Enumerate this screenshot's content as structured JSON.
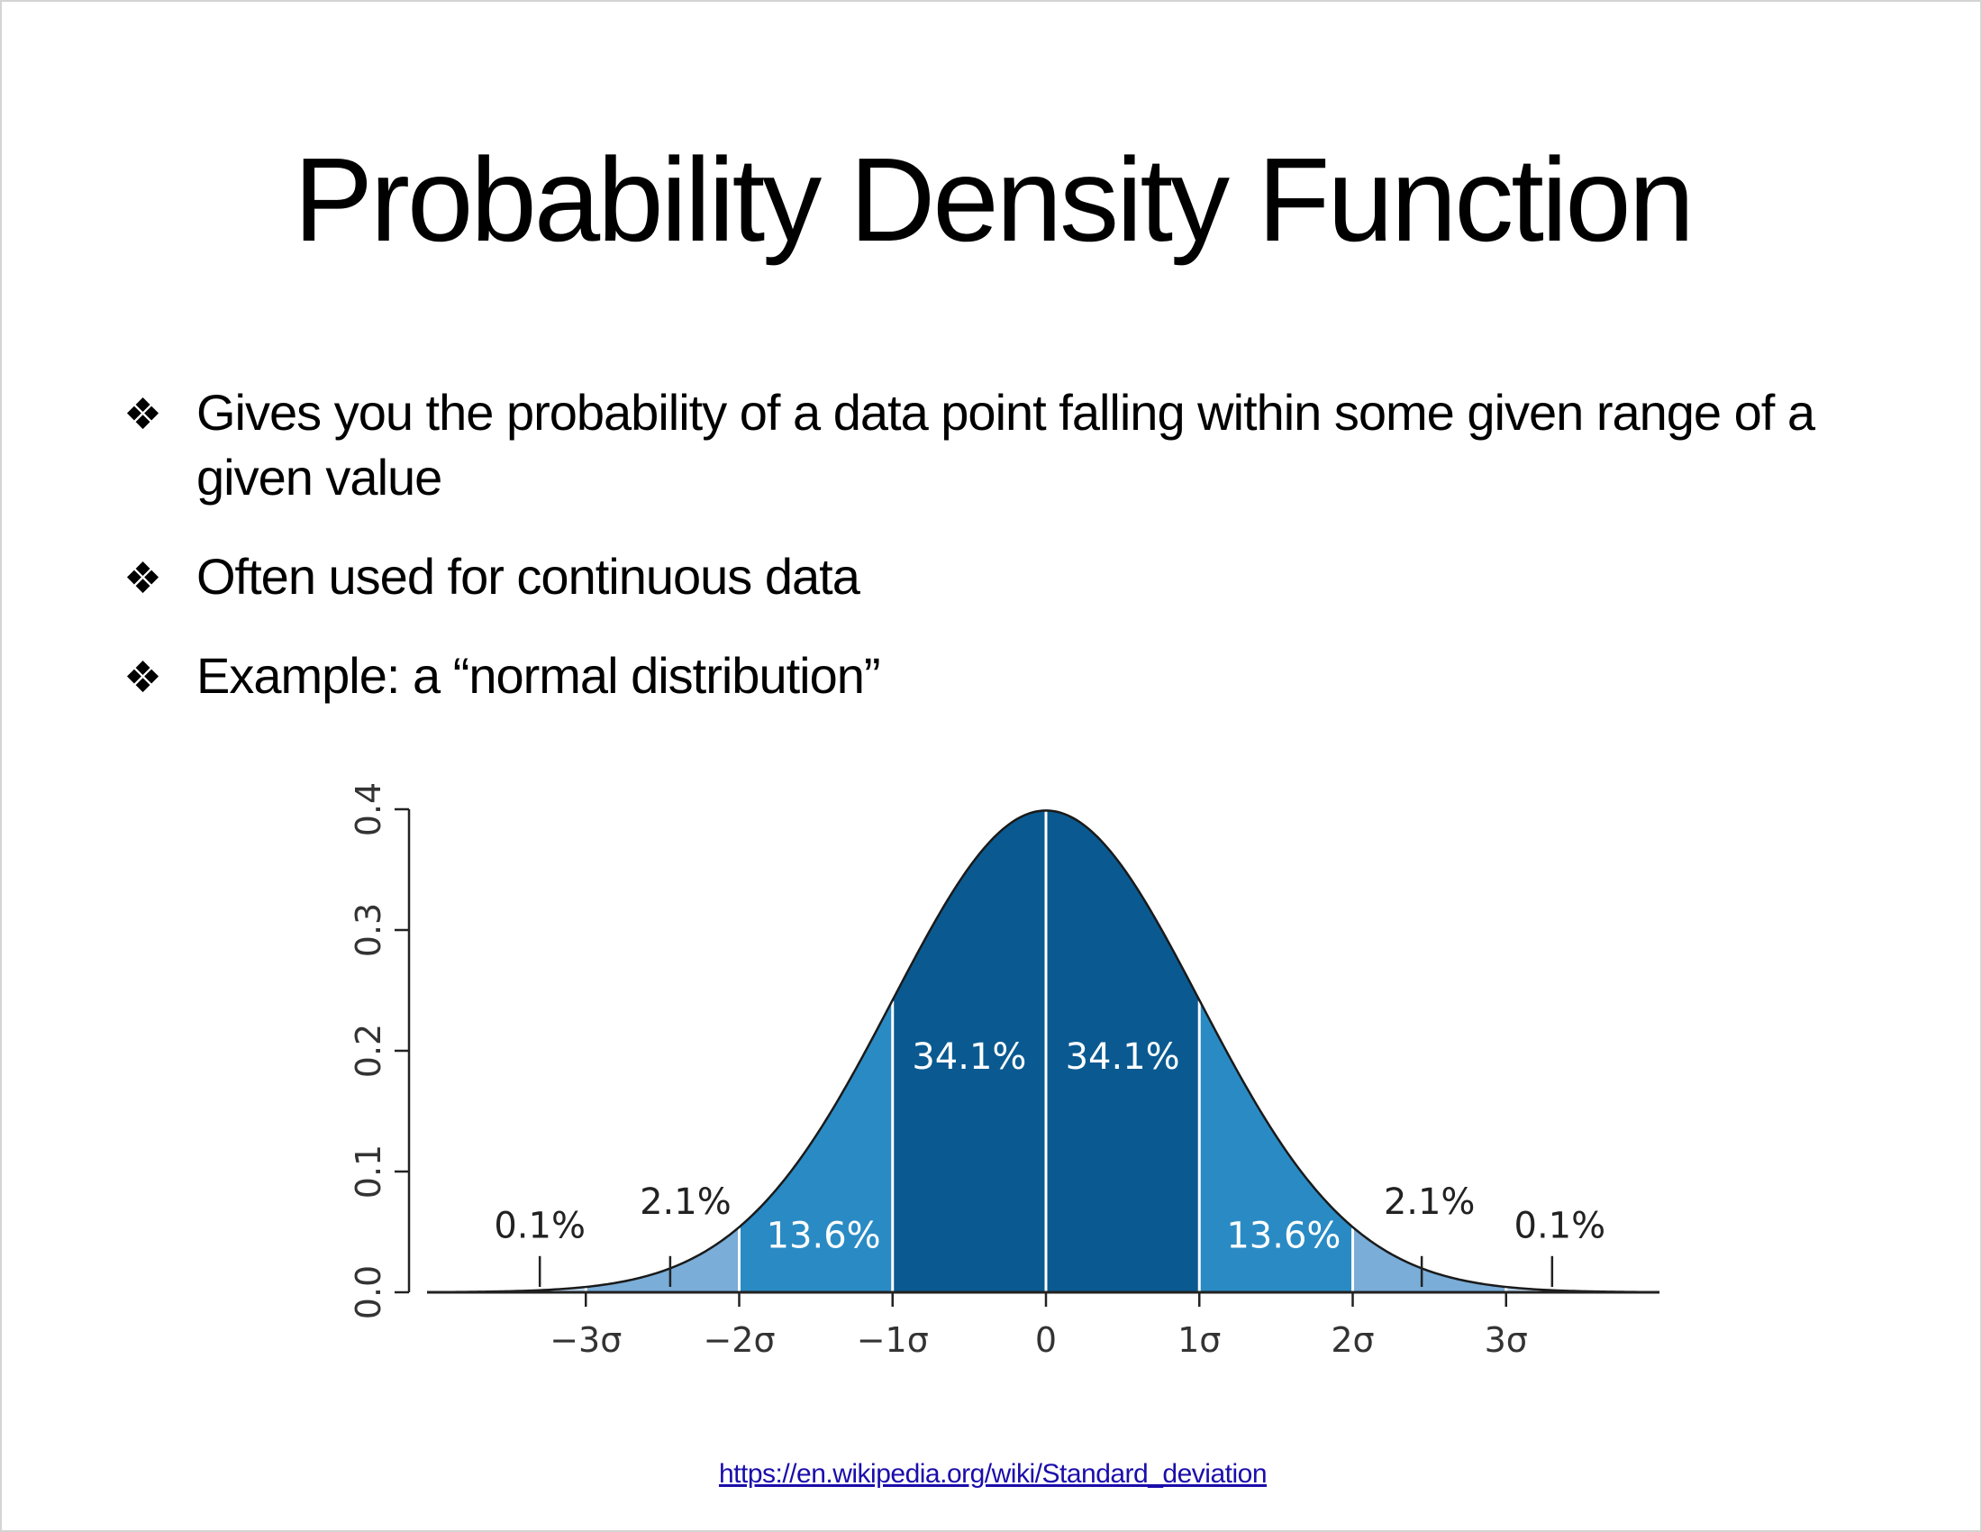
{
  "slide": {
    "title": "Probability Density Function",
    "bullet_icon": "diamond-bullet-icon",
    "bullet_glyph": "❖",
    "bullets": [
      "Gives you the probability of a data point falling within some given range of a given value",
      "Often used for continuous data",
      "Example: a “normal distribution”"
    ],
    "source": "https://en.wikipedia.org/wiki/Standard_deviation"
  },
  "chart_data": {
    "type": "area",
    "distribution": "standard normal",
    "mean": 0,
    "sd": 1,
    "xlim": [
      -4,
      4
    ],
    "ylim": [
      0,
      0.4
    ],
    "y_ticks": [
      0.0,
      0.1,
      0.2,
      0.3,
      0.4
    ],
    "y_tick_labels": [
      "0.0",
      "0.1",
      "0.2",
      "0.3",
      "0.4"
    ],
    "x_ticks": [
      -3,
      -2,
      -1,
      0,
      1,
      2,
      3
    ],
    "x_tick_labels": [
      "−3σ",
      "−2σ",
      "−1σ",
      "0",
      "1σ",
      "2σ",
      "3σ"
    ],
    "bands": [
      {
        "from": -1,
        "to": 0,
        "label": "34.1%",
        "color": "#0a5a91"
      },
      {
        "from": 0,
        "to": 1,
        "label": "34.1%",
        "color": "#0a5a91"
      },
      {
        "from": -2,
        "to": -1,
        "label": "13.6%",
        "color": "#2a8bc4"
      },
      {
        "from": 1,
        "to": 2,
        "label": "13.6%",
        "color": "#2a8bc4"
      },
      {
        "from": -3,
        "to": -2,
        "label": "2.1%",
        "color": "#7aadd8"
      },
      {
        "from": 2,
        "to": 3,
        "label": "2.1%",
        "color": "#7aadd8"
      },
      {
        "from": -4,
        "to": -3,
        "label": "0.1%",
        "color": "#b9d4ec"
      },
      {
        "from": 3,
        "to": 4,
        "label": "0.1%",
        "color": "#b9d4ec"
      }
    ],
    "grid": false,
    "curve_color": "#1a1a1a"
  }
}
